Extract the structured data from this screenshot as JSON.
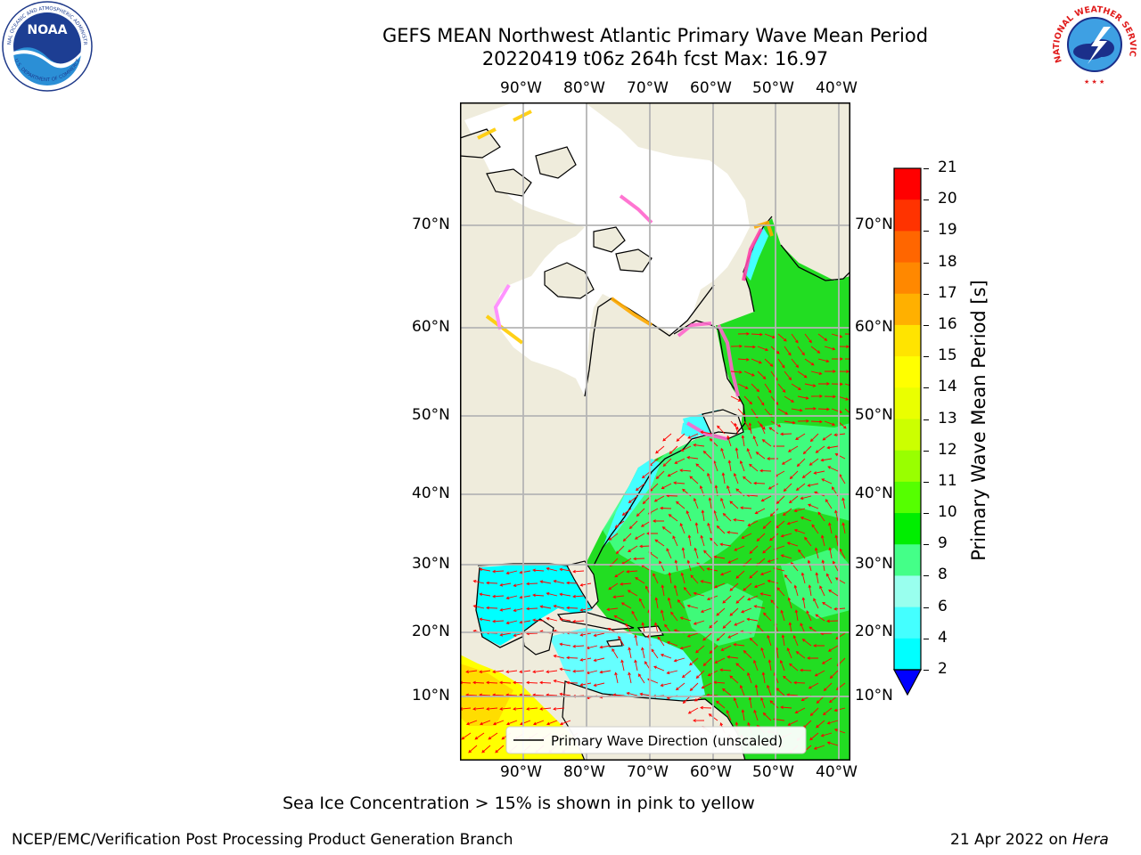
{
  "title": {
    "line1": "GEFS MEAN Northwest Atlantic Primary Wave Mean Period",
    "line2": "20220419 t06z 264h fcst   Max: 16.97"
  },
  "map": {
    "lon_labels": [
      "90°W",
      "80°W",
      "70°W",
      "60°W",
      "50°W",
      "40°W"
    ],
    "lat_labels": [
      "70°N",
      "60°N",
      "50°N",
      "40°N",
      "30°N",
      "20°N",
      "10°N"
    ],
    "legend_label": "Primary Wave Direction (unscaled)",
    "arrow_color": "#ff0000",
    "land_color": "#efecdc",
    "ice_color": "#ffffff"
  },
  "colorbar": {
    "label": "Primary Wave Mean Period [s]",
    "ticks": [
      "21",
      "20",
      "19",
      "18",
      "17",
      "16",
      "15",
      "14",
      "13",
      "12",
      "11",
      "10",
      "9",
      "8",
      "6",
      "4",
      "2"
    ],
    "colors": [
      "#ff0000",
      "#ff3300",
      "#ff6600",
      "#ff8800",
      "#ffb000",
      "#ffe400",
      "#ffff00",
      "#eaff00",
      "#ccff00",
      "#99ff00",
      "#55ff00",
      "#00ee00",
      "#44ff88",
      "#99ffee",
      "#44ffff",
      "#00ffff",
      "#0088ff"
    ],
    "under_color": "#0000ff"
  },
  "footer": {
    "note": "Sea Ice Concentration > 15% is shown in pink to yellow",
    "org": "NCEP/EMC/Verification Post Processing Product Generation Branch",
    "date": "21 Apr 2022 on ",
    "host": "Hera"
  },
  "logos": {
    "noaa": "NOAA",
    "noaa_ring": "NATIONAL OCEANIC AND ATMOSPHERIC ADMINISTRATION",
    "noaa_ring2": "U.S. DEPARTMENT OF COMMERCE",
    "nws_ring": "NATIONAL WEATHER SERVICE"
  }
}
